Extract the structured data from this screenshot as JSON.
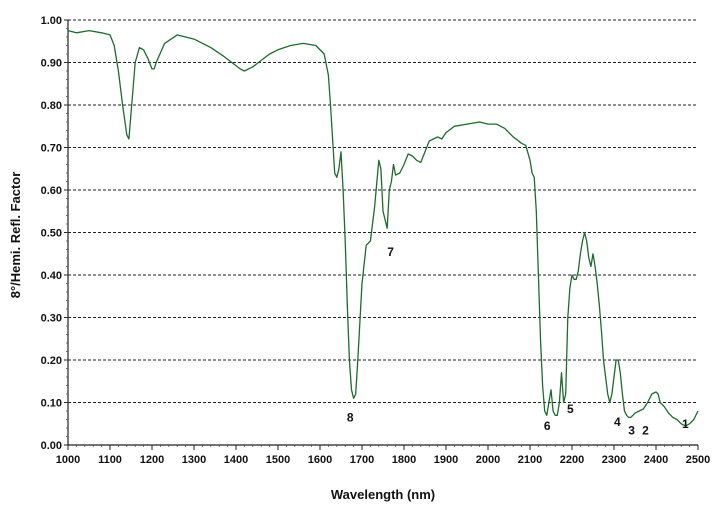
{
  "chart_data": {
    "type": "line",
    "title": "",
    "xlabel": "Wavelength (nm)",
    "ylabel": "8°/Hemi. Refl. Factor",
    "xlim": [
      1000,
      2500
    ],
    "ylim": [
      0,
      1
    ],
    "grid": {
      "horizontal": true,
      "horizontal_style": "dashed",
      "vertical": false
    },
    "x_ticks": [
      "1000",
      "1100",
      "1200",
      "1300",
      "1400",
      "1500",
      "1600",
      "1700",
      "1800",
      "1900",
      "2000",
      "2100",
      "2200",
      "2300",
      "2400",
      "2500"
    ],
    "y_ticks": [
      "0.00",
      "0.10",
      "0.20",
      "0.30",
      "0.40",
      "0.50",
      "0.60",
      "0.70",
      "0.80",
      "0.90",
      "1.00"
    ],
    "line_color": "#1e6b2e",
    "series": [
      {
        "x": [
          1000,
          1020,
          1050,
          1080,
          1100,
          1110,
          1120,
          1130,
          1140,
          1145,
          1150,
          1160,
          1170,
          1180,
          1190,
          1200,
          1205,
          1210,
          1230,
          1260,
          1300,
          1340,
          1370,
          1390,
          1410,
          1420,
          1440,
          1460,
          1480,
          1500,
          1530,
          1560,
          1590,
          1610,
          1620,
          1625,
          1630,
          1635,
          1640,
          1645,
          1650,
          1655,
          1660,
          1665,
          1670,
          1675,
          1680,
          1685,
          1690,
          1700,
          1710,
          1720,
          1730,
          1740,
          1745,
          1750,
          1755,
          1760,
          1765,
          1770,
          1775,
          1780,
          1790,
          1800,
          1810,
          1820,
          1830,
          1840,
          1850,
          1860,
          1870,
          1880,
          1890,
          1900,
          1920,
          1950,
          1980,
          2000,
          2020,
          2040,
          2060,
          2080,
          2090,
          2100,
          2105,
          2110,
          2115,
          2120,
          2125,
          2130,
          2135,
          2140,
          2145,
          2150,
          2155,
          2160,
          2165,
          2170,
          2175,
          2180,
          2185,
          2190,
          2195,
          2200,
          2205,
          2210,
          2215,
          2220,
          2225,
          2230,
          2235,
          2240,
          2245,
          2250,
          2255,
          2260,
          2265,
          2270,
          2275,
          2280,
          2285,
          2290,
          2295,
          2300,
          2305,
          2310,
          2315,
          2320,
          2325,
          2330,
          2335,
          2340,
          2345,
          2350,
          2360,
          2370,
          2380,
          2390,
          2400,
          2405,
          2410,
          2420,
          2430,
          2440,
          2450,
          2460,
          2470,
          2480,
          2490,
          2500
        ],
        "y": [
          0.975,
          0.97,
          0.975,
          0.97,
          0.965,
          0.94,
          0.88,
          0.8,
          0.73,
          0.72,
          0.78,
          0.9,
          0.935,
          0.93,
          0.91,
          0.885,
          0.885,
          0.9,
          0.945,
          0.965,
          0.955,
          0.935,
          0.915,
          0.9,
          0.885,
          0.88,
          0.89,
          0.905,
          0.92,
          0.93,
          0.94,
          0.945,
          0.94,
          0.92,
          0.87,
          0.8,
          0.72,
          0.64,
          0.63,
          0.65,
          0.69,
          0.6,
          0.48,
          0.33,
          0.2,
          0.13,
          0.11,
          0.12,
          0.2,
          0.38,
          0.47,
          0.48,
          0.56,
          0.67,
          0.65,
          0.55,
          0.53,
          0.51,
          0.6,
          0.62,
          0.66,
          0.635,
          0.64,
          0.66,
          0.685,
          0.68,
          0.67,
          0.665,
          0.69,
          0.715,
          0.72,
          0.725,
          0.72,
          0.735,
          0.75,
          0.755,
          0.76,
          0.755,
          0.755,
          0.745,
          0.725,
          0.71,
          0.705,
          0.67,
          0.64,
          0.63,
          0.55,
          0.4,
          0.25,
          0.14,
          0.08,
          0.07,
          0.1,
          0.13,
          0.08,
          0.07,
          0.07,
          0.1,
          0.17,
          0.1,
          0.12,
          0.3,
          0.37,
          0.4,
          0.39,
          0.39,
          0.41,
          0.45,
          0.48,
          0.5,
          0.48,
          0.44,
          0.42,
          0.45,
          0.42,
          0.38,
          0.33,
          0.27,
          0.2,
          0.16,
          0.12,
          0.1,
          0.12,
          0.16,
          0.2,
          0.2,
          0.17,
          0.12,
          0.08,
          0.07,
          0.065,
          0.065,
          0.07,
          0.075,
          0.08,
          0.085,
          0.1,
          0.12,
          0.125,
          0.12,
          0.1,
          0.09,
          0.075,
          0.065,
          0.06,
          0.05,
          0.045,
          0.05,
          0.06,
          0.08
        ]
      }
    ],
    "annotations": [
      {
        "text": "1",
        "x": 2470,
        "y": 0.04
      },
      {
        "text": "2",
        "x": 2375,
        "y": 0.025
      },
      {
        "text": "3",
        "x": 2342,
        "y": 0.025
      },
      {
        "text": "4",
        "x": 2308,
        "y": 0.045
      },
      {
        "text": "5",
        "x": 2196,
        "y": 0.075
      },
      {
        "text": "6",
        "x": 2141,
        "y": 0.035
      },
      {
        "text": "7",
        "x": 1768,
        "y": 0.445
      },
      {
        "text": "8",
        "x": 1672,
        "y": 0.055
      }
    ]
  }
}
